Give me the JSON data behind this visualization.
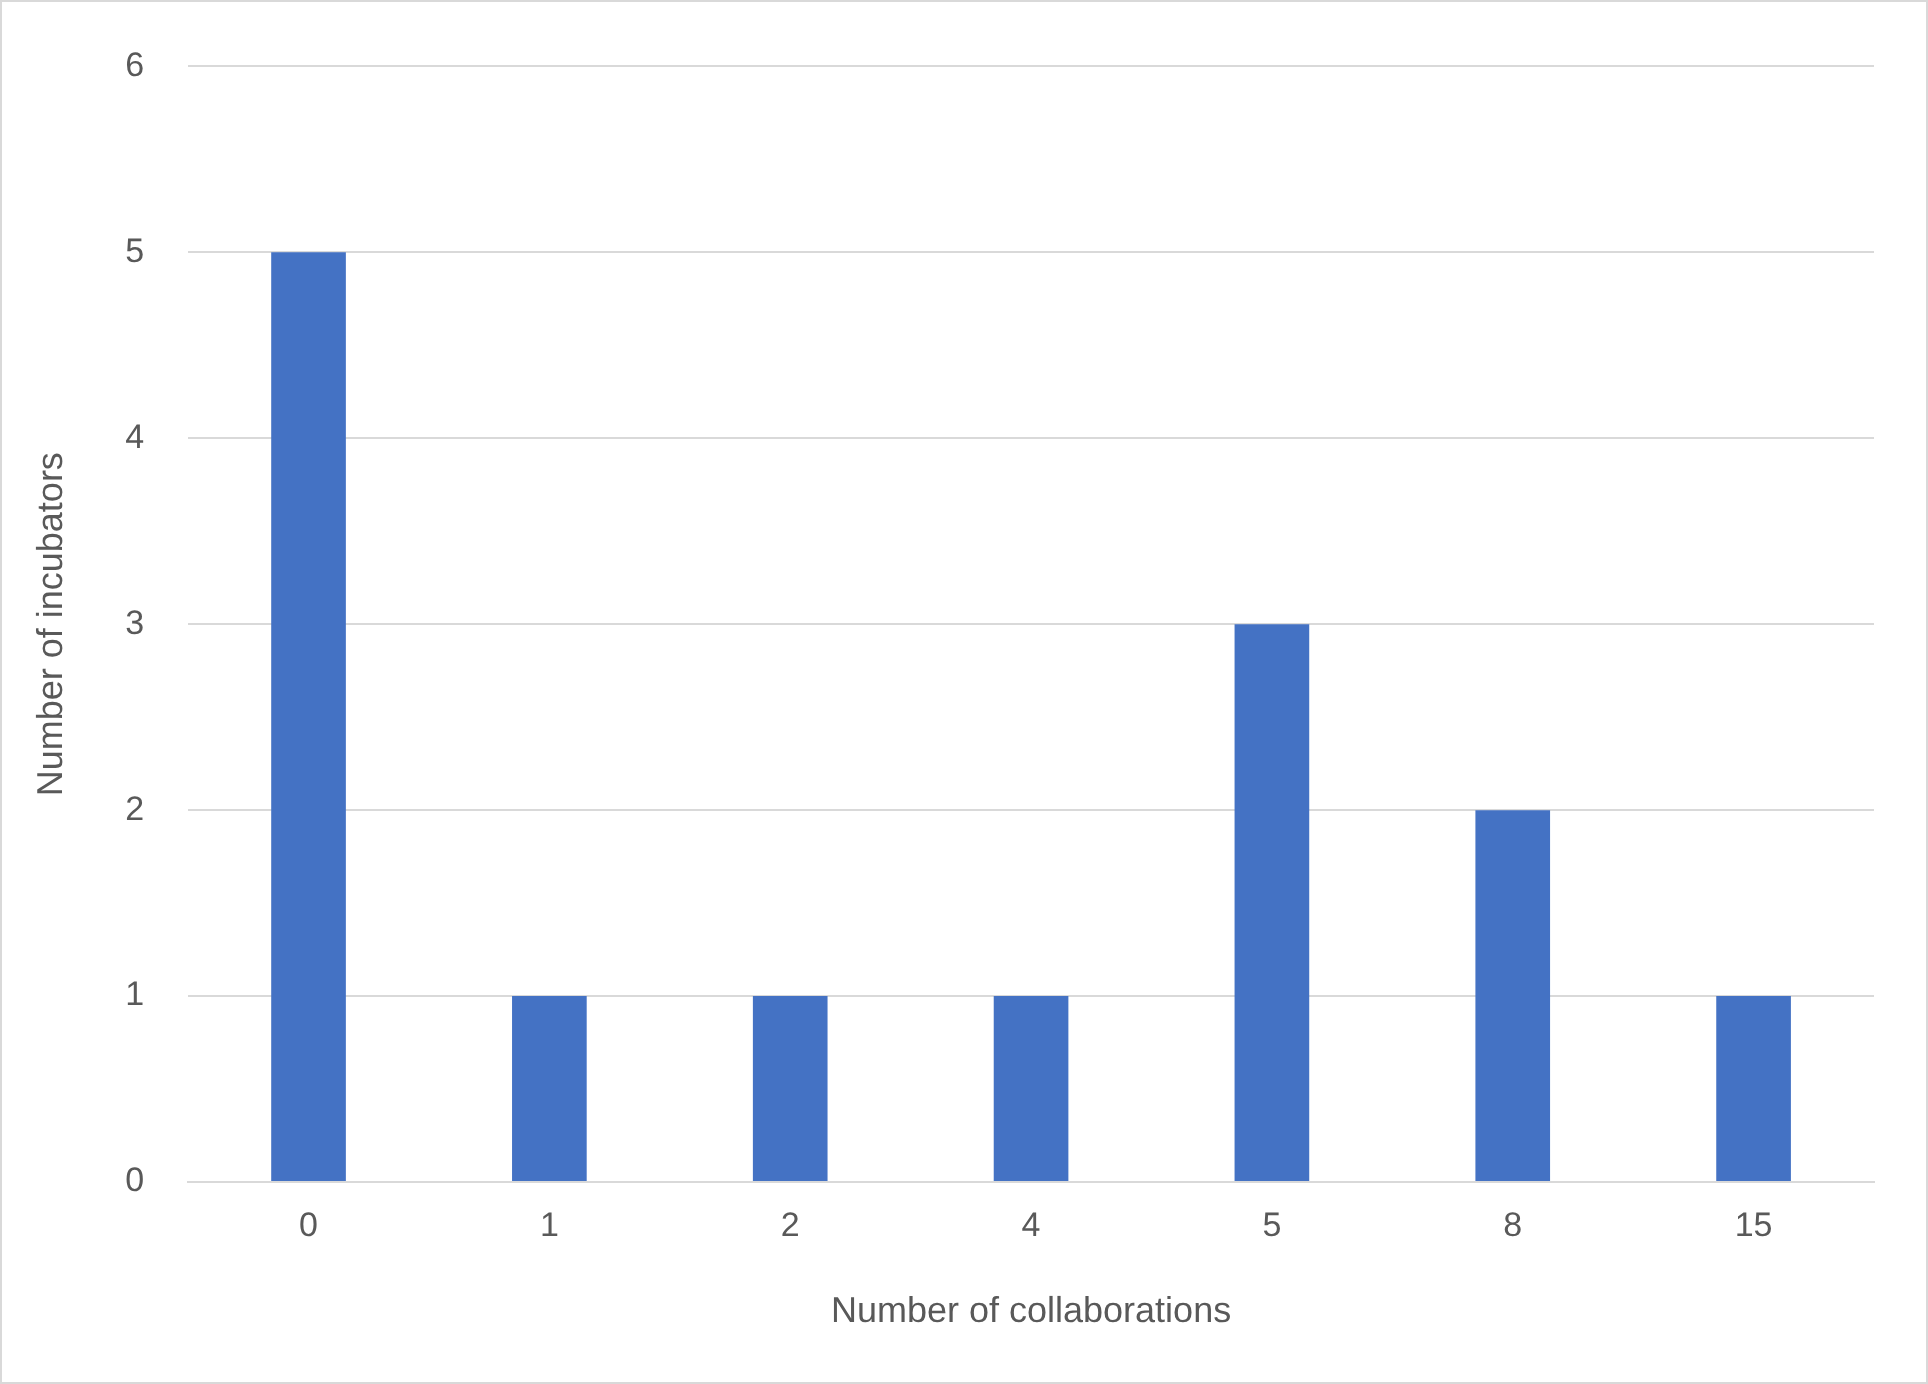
{
  "chart_data": {
    "type": "bar",
    "xlabel": "Number of collaborations",
    "ylabel": "Number of incubators",
    "categories": [
      "0",
      "1",
      "2",
      "4",
      "5",
      "8",
      "15"
    ],
    "values": [
      5,
      1,
      1,
      1,
      3,
      2,
      1
    ],
    "color": "#4472c4",
    "ylim": [
      0,
      6
    ],
    "yticks": [
      0,
      1,
      2,
      3,
      4,
      5,
      6
    ],
    "grid": "y",
    "legend": false
  }
}
